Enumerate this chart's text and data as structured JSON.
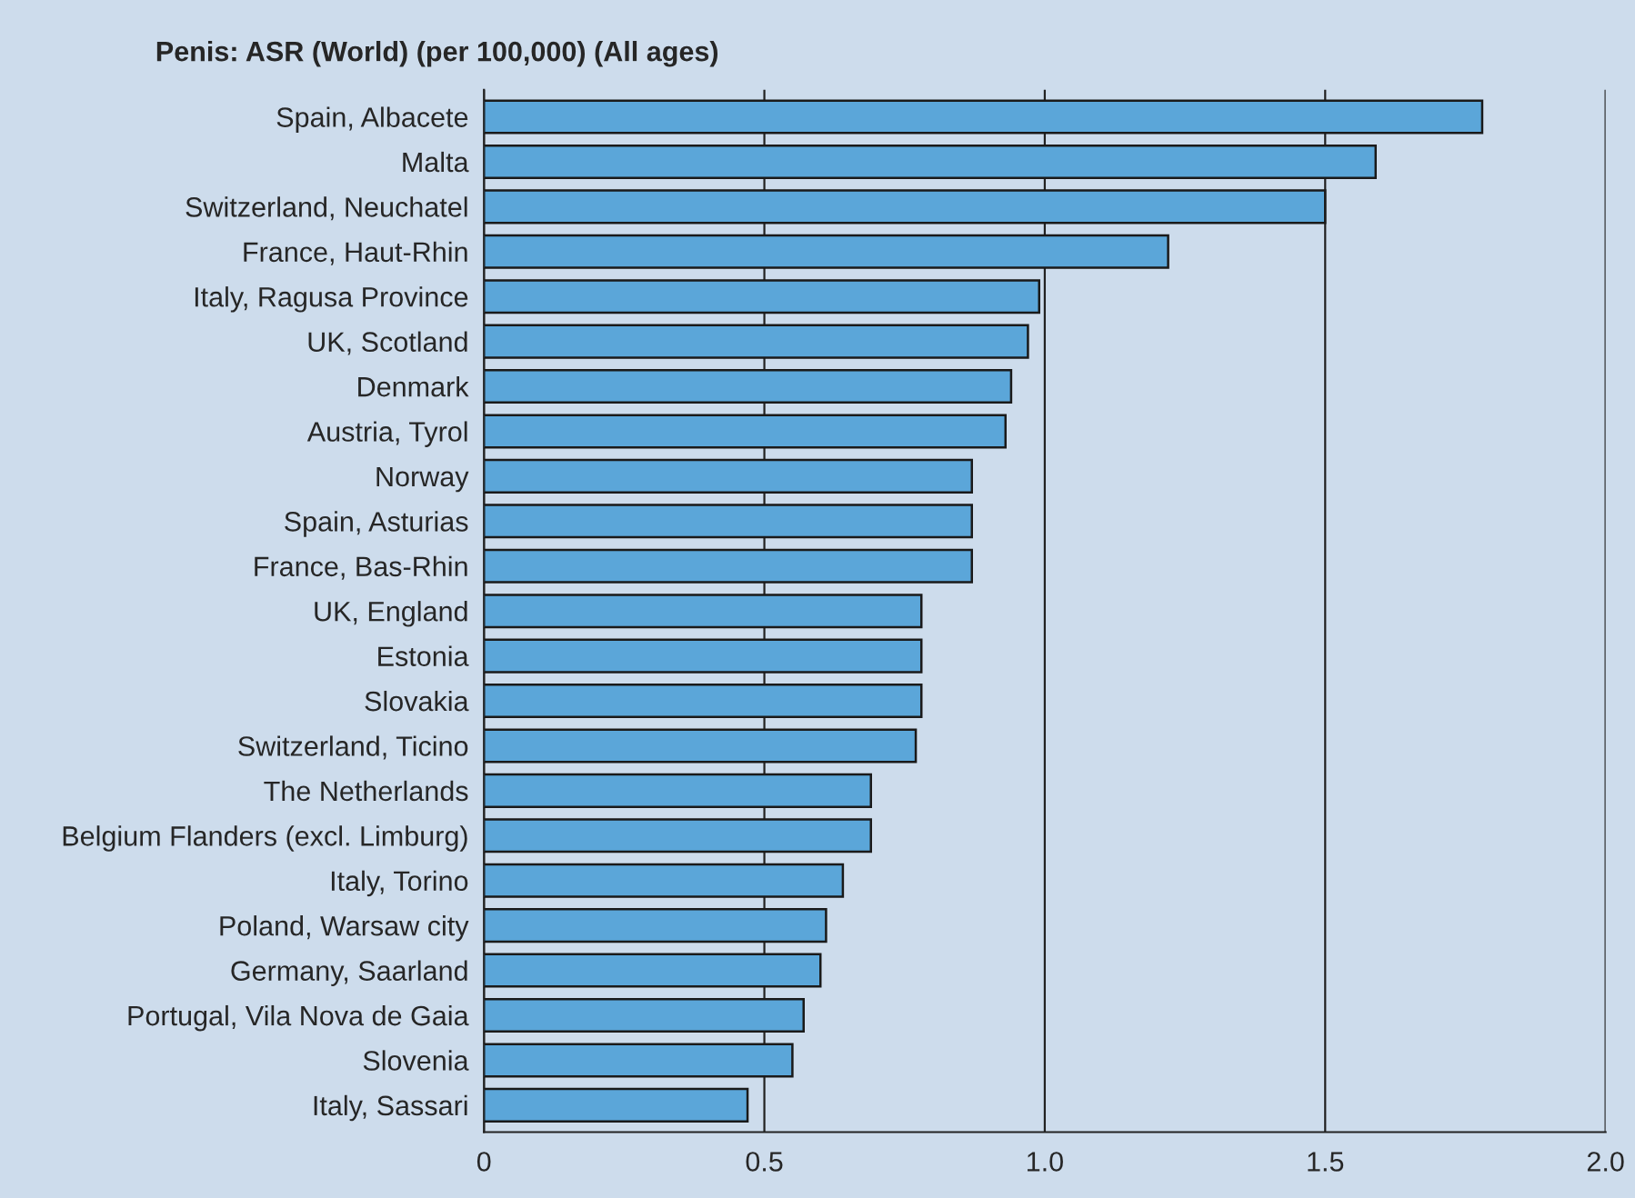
{
  "chart_data": {
    "type": "bar",
    "orientation": "horizontal",
    "title": "Penis: ASR (World) (per 100,000) (All ages)",
    "categories": [
      "Spain, Albacete",
      "Malta",
      "Switzerland, Neuchatel",
      "France, Haut-Rhin",
      "Italy, Ragusa Province",
      "UK, Scotland",
      "Denmark",
      "Austria, Tyrol",
      "Norway",
      "Spain, Asturias",
      "France, Bas-Rhin",
      "UK, England",
      "Estonia",
      "Slovakia",
      "Switzerland, Ticino",
      "The Netherlands",
      "Belgium Flanders (excl. Limburg)",
      "Italy, Torino",
      "Poland, Warsaw city",
      "Germany, Saarland",
      "Portugal, Vila Nova de Gaia",
      "Slovenia",
      "Italy, Sassari"
    ],
    "values": [
      1.78,
      1.59,
      1.5,
      1.22,
      0.99,
      0.97,
      0.94,
      0.93,
      0.87,
      0.87,
      0.87,
      0.78,
      0.78,
      0.78,
      0.77,
      0.69,
      0.69,
      0.64,
      0.61,
      0.6,
      0.57,
      0.55,
      0.47
    ],
    "color": "#5ba6d9",
    "xlim": [
      0,
      2.0
    ],
    "xticks": [
      0,
      {
        "value": 0.5,
        "label": "0.5"
      },
      {
        "value": 1.0,
        "label": "1.0"
      },
      {
        "value": 1.5,
        "label": "1.5"
      },
      {
        "value": 2.0,
        "label": "2.0"
      }
    ],
    "grid": "x"
  }
}
